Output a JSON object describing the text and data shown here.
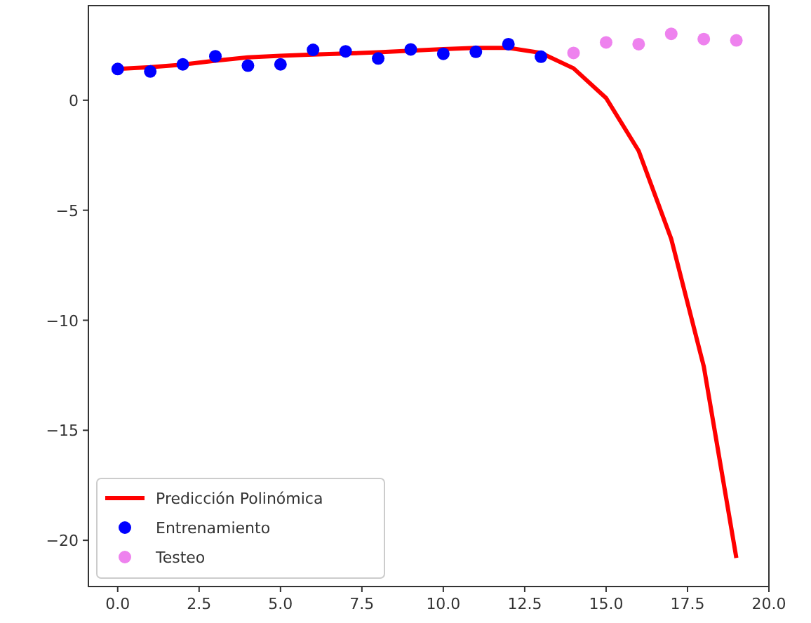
{
  "chart_data": {
    "type": "line",
    "xlim": [
      -0.9,
      20.0
    ],
    "ylim": [
      -22.1,
      4.3
    ],
    "xticks": [
      {
        "value": 0,
        "label": "0.0"
      },
      {
        "value": 2.5,
        "label": "2.5"
      },
      {
        "value": 5,
        "label": "5.0"
      },
      {
        "value": 7.5,
        "label": "7.5"
      },
      {
        "value": 10,
        "label": "10.0"
      },
      {
        "value": 12.5,
        "label": "12.5"
      },
      {
        "value": 15,
        "label": "15.0"
      },
      {
        "value": 17.5,
        "label": "17.5"
      },
      {
        "value": 20,
        "label": "20.0"
      }
    ],
    "yticks": [
      {
        "value": -20,
        "label": "−20"
      },
      {
        "value": -15,
        "label": "−15"
      },
      {
        "value": -10,
        "label": "−10"
      },
      {
        "value": -5,
        "label": "−5"
      },
      0
    ],
    "grid": false,
    "legend": "bottom left",
    "series": [
      {
        "name": "Predicción Polinómica",
        "color": "#ff0000",
        "x": [
          0,
          1,
          2,
          3,
          4,
          5,
          6,
          7,
          8,
          9,
          10,
          11,
          12,
          13,
          14,
          15,
          16,
          17,
          18,
          19
        ],
        "values": [
          1.42,
          1.5,
          1.62,
          1.8,
          1.95,
          2.02,
          2.08,
          2.12,
          2.18,
          2.25,
          2.32,
          2.38,
          2.38,
          2.15,
          1.45,
          0.1,
          -2.3,
          -6.3,
          -12.1,
          -20.8
        ]
      },
      {
        "name": "Entrenamiento",
        "type": "scatter",
        "color": "#0000ff",
        "marker": "circle",
        "x": [
          0,
          1,
          2,
          3,
          4,
          5,
          6,
          7,
          8,
          9,
          10,
          11,
          12,
          13
        ],
        "values": [
          1.42,
          1.31,
          1.63,
          2.0,
          1.57,
          1.63,
          2.29,
          2.22,
          1.9,
          2.31,
          2.11,
          2.2,
          2.55,
          1.98
        ]
      },
      {
        "name": "Testeo",
        "type": "scatter",
        "color": "#ee82ee",
        "marker": "circle",
        "x": [
          14,
          15,
          16,
          17,
          18,
          19
        ],
        "values": [
          2.15,
          2.63,
          2.55,
          3.02,
          2.78,
          2.72
        ]
      }
    ]
  }
}
